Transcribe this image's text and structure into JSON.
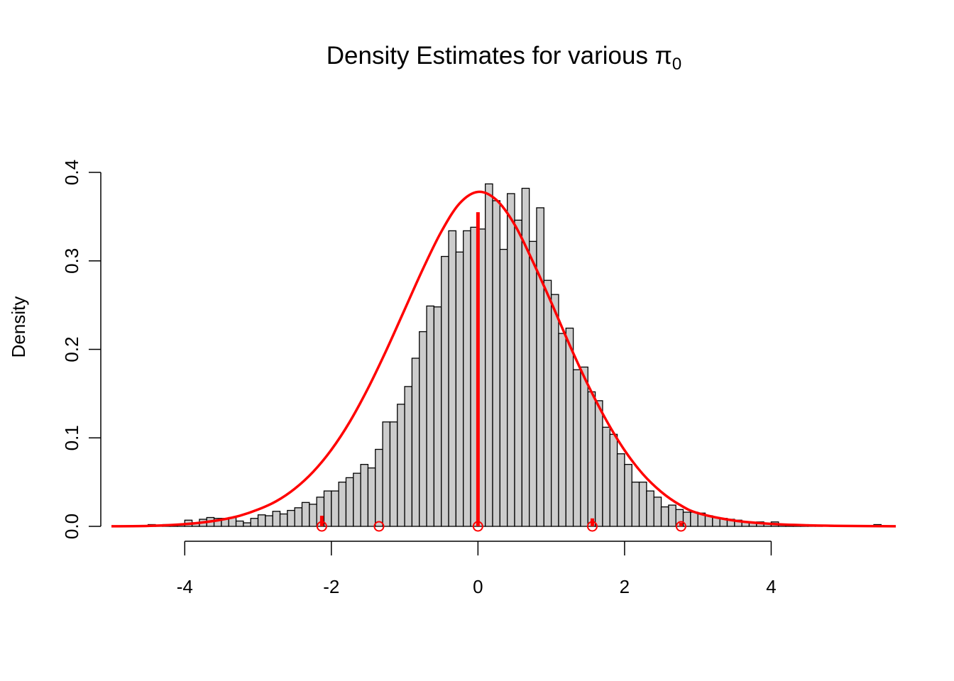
{
  "chart_data": {
    "type": "bar",
    "title_main": "Density Estimates for various π",
    "title_subscript": "0",
    "xlabel": "",
    "ylabel": "Density",
    "xlim": [
      -5,
      5.7
    ],
    "ylim": [
      0,
      0.4
    ],
    "x_ticks": [
      -4,
      -2,
      0,
      2,
      4
    ],
    "x_tick_labels": [
      "-4",
      "-2",
      "0",
      "2",
      "4"
    ],
    "y_ticks": [
      0.0,
      0.1,
      0.2,
      0.3,
      0.4
    ],
    "y_tick_labels": [
      "0.0",
      "0.1",
      "0.2",
      "0.3",
      "0.4"
    ],
    "grid": false,
    "histogram": {
      "bin_width": 0.1,
      "start": -4.8,
      "values": [
        0.0,
        0.0,
        0.001,
        0.002,
        0.001,
        0.002,
        0.002,
        0.002,
        0.007,
        0.004,
        0.008,
        0.01,
        0.009,
        0.009,
        0.01,
        0.006,
        0.004,
        0.009,
        0.013,
        0.012,
        0.017,
        0.014,
        0.018,
        0.021,
        0.027,
        0.025,
        0.033,
        0.04,
        0.04,
        0.05,
        0.055,
        0.06,
        0.07,
        0.066,
        0.087,
        0.118,
        0.118,
        0.138,
        0.158,
        0.19,
        0.22,
        0.249,
        0.248,
        0.305,
        0.334,
        0.31,
        0.334,
        0.338,
        0.336,
        0.387,
        0.368,
        0.313,
        0.376,
        0.346,
        0.382,
        0.322,
        0.36,
        0.278,
        0.262,
        0.218,
        0.224,
        0.177,
        0.18,
        0.152,
        0.142,
        0.112,
        0.104,
        0.082,
        0.07,
        0.05,
        0.05,
        0.04,
        0.033,
        0.022,
        0.024,
        0.019,
        0.016,
        0.016,
        0.015,
        0.012,
        0.01,
        0.009,
        0.008,
        0.007,
        0.005,
        0.004,
        0.005,
        0.003,
        0.005,
        0.002,
        0.002,
        0.001,
        0.001,
        0.001,
        0.001,
        0.0,
        0.001,
        0.0,
        0.001,
        0.001,
        0.001,
        0.0,
        0.002
      ]
    },
    "series": [
      {
        "kind": "density-curve",
        "color": "#ff0000",
        "x": [
          -5.0,
          -4.5,
          -4.0,
          -3.75,
          -3.5,
          -3.25,
          -3.0,
          -2.75,
          -2.5,
          -2.25,
          -2.0,
          -1.75,
          -1.5,
          -1.25,
          -1.0,
          -0.75,
          -0.5,
          -0.25,
          0.0,
          0.25,
          0.5,
          0.75,
          1.0,
          1.25,
          1.5,
          1.75,
          2.0,
          2.25,
          2.5,
          2.75,
          3.0,
          3.5,
          4.0,
          4.5,
          5.0,
          5.7
        ],
        "y": [
          0.0001,
          0.0005,
          0.0025,
          0.0045,
          0.0075,
          0.012,
          0.019,
          0.0285,
          0.0425,
          0.0615,
          0.0865,
          0.118,
          0.156,
          0.199,
          0.245,
          0.291,
          0.333,
          0.365,
          0.378,
          0.369,
          0.341,
          0.299,
          0.253,
          0.205,
          0.16,
          0.12,
          0.086,
          0.059,
          0.039,
          0.0245,
          0.015,
          0.0065,
          0.0028,
          0.0012,
          0.0005,
          0.0001
        ]
      },
      {
        "kind": "point-masses",
        "color": "#ff0000",
        "points": [
          {
            "x": -2.13,
            "mass": 0.012
          },
          {
            "x": -1.35,
            "mass": 0.0
          },
          {
            "x": 0.0,
            "mass": 0.355
          },
          {
            "x": 1.56,
            "mass": 0.009
          },
          {
            "x": 2.77,
            "mass": 0.004
          }
        ]
      }
    ]
  }
}
